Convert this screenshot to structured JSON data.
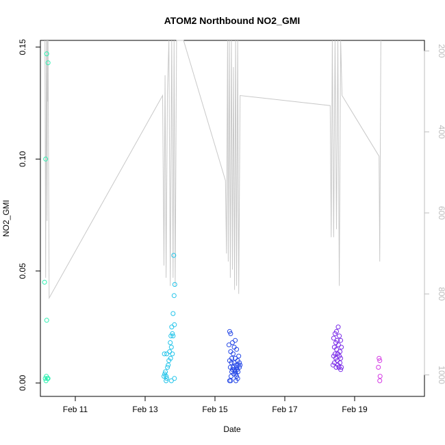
{
  "chart_data": {
    "type": "scatter",
    "title": "ATOM2 Northbound NO2_GMI",
    "xlabel": "Date",
    "ylabel": "NO2_GMI",
    "x_unit": "date (Feb 2017)",
    "xlim": [
      10.0,
      21.0
    ],
    "ylim": [
      -0.006,
      0.153
    ],
    "x_ticks": [
      {
        "value": 11,
        "label": "Feb 11"
      },
      {
        "value": 13,
        "label": "Feb 13"
      },
      {
        "value": 15,
        "label": "Feb 15"
      },
      {
        "value": 17,
        "label": "Feb 17"
      },
      {
        "value": 19,
        "label": "Feb 19"
      }
    ],
    "y_ticks": [
      {
        "value": 0.0,
        "label": "0.00"
      },
      {
        "value": 0.05,
        "label": "0.05"
      },
      {
        "value": 0.1,
        "label": "0.10"
      },
      {
        "value": 0.15,
        "label": "0.15"
      }
    ],
    "right_axis": {
      "color": "#bdbdbd",
      "scale": "reversed",
      "ylim": [
        174,
        1053
      ],
      "ticks": [
        {
          "value": 200,
          "label": "200"
        },
        {
          "value": 400,
          "label": "400"
        },
        {
          "value": 600,
          "label": "600"
        },
        {
          "value": 800,
          "label": "800"
        },
        {
          "value": 1000,
          "label": "1000"
        }
      ]
    },
    "grid": false,
    "legend": "none",
    "marker": "open circle",
    "series": [
      {
        "color": "#2bf0b0",
        "points": [
          [
            10.18,
            0.147
          ],
          [
            10.22,
            0.143
          ],
          [
            10.15,
            0.1
          ],
          [
            10.12,
            0.045
          ],
          [
            10.18,
            0.028
          ],
          [
            10.14,
            0.002
          ],
          [
            10.17,
            0.003
          ],
          [
            10.2,
            0.002
          ],
          [
            10.16,
            0.001
          ],
          [
            10.22,
            0.002
          ]
        ]
      },
      {
        "color": "#22c4ea",
        "points": [
          [
            13.82,
            0.057
          ],
          [
            13.85,
            0.044
          ],
          [
            13.83,
            0.039
          ],
          [
            13.8,
            0.031
          ],
          [
            13.84,
            0.026
          ],
          [
            13.76,
            0.025
          ],
          [
            13.78,
            0.022
          ],
          [
            13.74,
            0.021
          ],
          [
            13.8,
            0.021
          ],
          [
            13.72,
            0.018
          ],
          [
            13.75,
            0.016
          ],
          [
            13.7,
            0.014
          ],
          [
            13.78,
            0.013
          ],
          [
            13.55,
            0.013
          ],
          [
            13.62,
            0.013
          ],
          [
            13.73,
            0.011
          ],
          [
            13.68,
            0.01
          ],
          [
            13.66,
            0.008
          ],
          [
            13.64,
            0.007
          ],
          [
            13.58,
            0.005
          ],
          [
            13.56,
            0.004
          ],
          [
            13.6,
            0.003
          ],
          [
            13.54,
            0.003
          ],
          [
            13.62,
            0.002
          ],
          [
            13.84,
            0.002
          ],
          [
            13.6,
            0.001
          ],
          [
            13.75,
            0.001
          ]
        ]
      },
      {
        "color": "#2447e6",
        "points": [
          [
            15.42,
            0.023
          ],
          [
            15.45,
            0.022
          ],
          [
            15.58,
            0.019
          ],
          [
            15.5,
            0.018
          ],
          [
            15.4,
            0.017
          ],
          [
            15.55,
            0.016
          ],
          [
            15.62,
            0.015
          ],
          [
            15.45,
            0.014
          ],
          [
            15.52,
            0.013
          ],
          [
            15.68,
            0.012
          ],
          [
            15.48,
            0.011
          ],
          [
            15.58,
            0.011
          ],
          [
            15.42,
            0.01
          ],
          [
            15.65,
            0.01
          ],
          [
            15.7,
            0.009
          ],
          [
            15.47,
            0.009
          ],
          [
            15.55,
            0.009
          ],
          [
            15.6,
            0.008
          ],
          [
            15.66,
            0.008
          ],
          [
            15.72,
            0.008
          ],
          [
            15.44,
            0.007
          ],
          [
            15.52,
            0.007
          ],
          [
            15.62,
            0.007
          ],
          [
            15.7,
            0.007
          ],
          [
            15.5,
            0.006
          ],
          [
            15.56,
            0.006
          ],
          [
            15.64,
            0.006
          ],
          [
            15.48,
            0.005
          ],
          [
            15.58,
            0.005
          ],
          [
            15.66,
            0.005
          ],
          [
            15.54,
            0.004
          ],
          [
            15.6,
            0.004
          ],
          [
            15.46,
            0.003
          ],
          [
            15.62,
            0.003
          ],
          [
            15.42,
            0.001
          ],
          [
            15.45,
            0.001
          ],
          [
            15.6,
            0.001
          ],
          [
            15.65,
            0.002
          ]
        ]
      },
      {
        "color": "#7a2ae8",
        "points": [
          [
            18.53,
            0.025
          ],
          [
            18.48,
            0.023
          ],
          [
            18.44,
            0.022
          ],
          [
            18.56,
            0.021
          ],
          [
            18.4,
            0.02
          ],
          [
            18.5,
            0.019
          ],
          [
            18.6,
            0.019
          ],
          [
            18.46,
            0.018
          ],
          [
            18.54,
            0.017
          ],
          [
            18.42,
            0.016
          ],
          [
            18.62,
            0.016
          ],
          [
            18.48,
            0.015
          ],
          [
            18.58,
            0.014
          ],
          [
            18.44,
            0.013
          ],
          [
            18.52,
            0.013
          ],
          [
            18.4,
            0.012
          ],
          [
            18.56,
            0.012
          ],
          [
            18.6,
            0.011
          ],
          [
            18.46,
            0.011
          ],
          [
            18.5,
            0.01
          ],
          [
            18.42,
            0.009
          ],
          [
            18.58,
            0.009
          ],
          [
            18.52,
            0.008
          ],
          [
            18.38,
            0.008
          ],
          [
            18.62,
            0.007
          ],
          [
            18.55,
            0.007
          ],
          [
            18.47,
            0.007
          ],
          [
            18.6,
            0.006
          ]
        ]
      },
      {
        "color": "#d43ae4",
        "points": [
          [
            19.7,
            0.011
          ],
          [
            19.72,
            0.01
          ],
          [
            19.68,
            0.007
          ],
          [
            19.73,
            0.003
          ],
          [
            19.72,
            0.001
          ]
        ]
      }
    ],
    "right_axis_line": {
      "color": "#c8c8c8",
      "points": [
        [
          10.13,
          174
        ],
        [
          10.15,
          760
        ],
        [
          10.17,
          174
        ],
        [
          10.19,
          620
        ],
        [
          10.2,
          174
        ],
        [
          10.21,
          325
        ],
        [
          10.22,
          174
        ],
        [
          10.25,
          810
        ],
        [
          13.5,
          310
        ],
        [
          13.54,
          730
        ],
        [
          13.57,
          260
        ],
        [
          13.6,
          760
        ],
        [
          13.64,
          300
        ],
        [
          13.68,
          174
        ],
        [
          13.72,
          780
        ],
        [
          13.76,
          174
        ],
        [
          13.8,
          760
        ],
        [
          13.83,
          174
        ],
        [
          13.86,
          780
        ],
        [
          13.9,
          174
        ],
        [
          14.1,
          174
        ],
        [
          15.3,
          520
        ],
        [
          15.33,
          700
        ],
        [
          15.36,
          174
        ],
        [
          15.38,
          720
        ],
        [
          15.41,
          174
        ],
        [
          15.44,
          760
        ],
        [
          15.47,
          174
        ],
        [
          15.5,
          740
        ],
        [
          15.53,
          240
        ],
        [
          15.56,
          790
        ],
        [
          15.59,
          174
        ],
        [
          15.62,
          780
        ],
        [
          15.65,
          174
        ],
        [
          15.68,
          800
        ],
        [
          15.72,
          310
        ],
        [
          18.3,
          335
        ],
        [
          18.33,
          660
        ],
        [
          18.36,
          174
        ],
        [
          18.4,
          660
        ],
        [
          18.44,
          174
        ],
        [
          18.48,
          640
        ],
        [
          18.52,
          174
        ],
        [
          18.56,
          780
        ],
        [
          18.6,
          174
        ],
        [
          18.64,
          310
        ],
        [
          19.7,
          460
        ],
        [
          19.72,
          720
        ],
        [
          19.75,
          174
        ]
      ]
    }
  }
}
